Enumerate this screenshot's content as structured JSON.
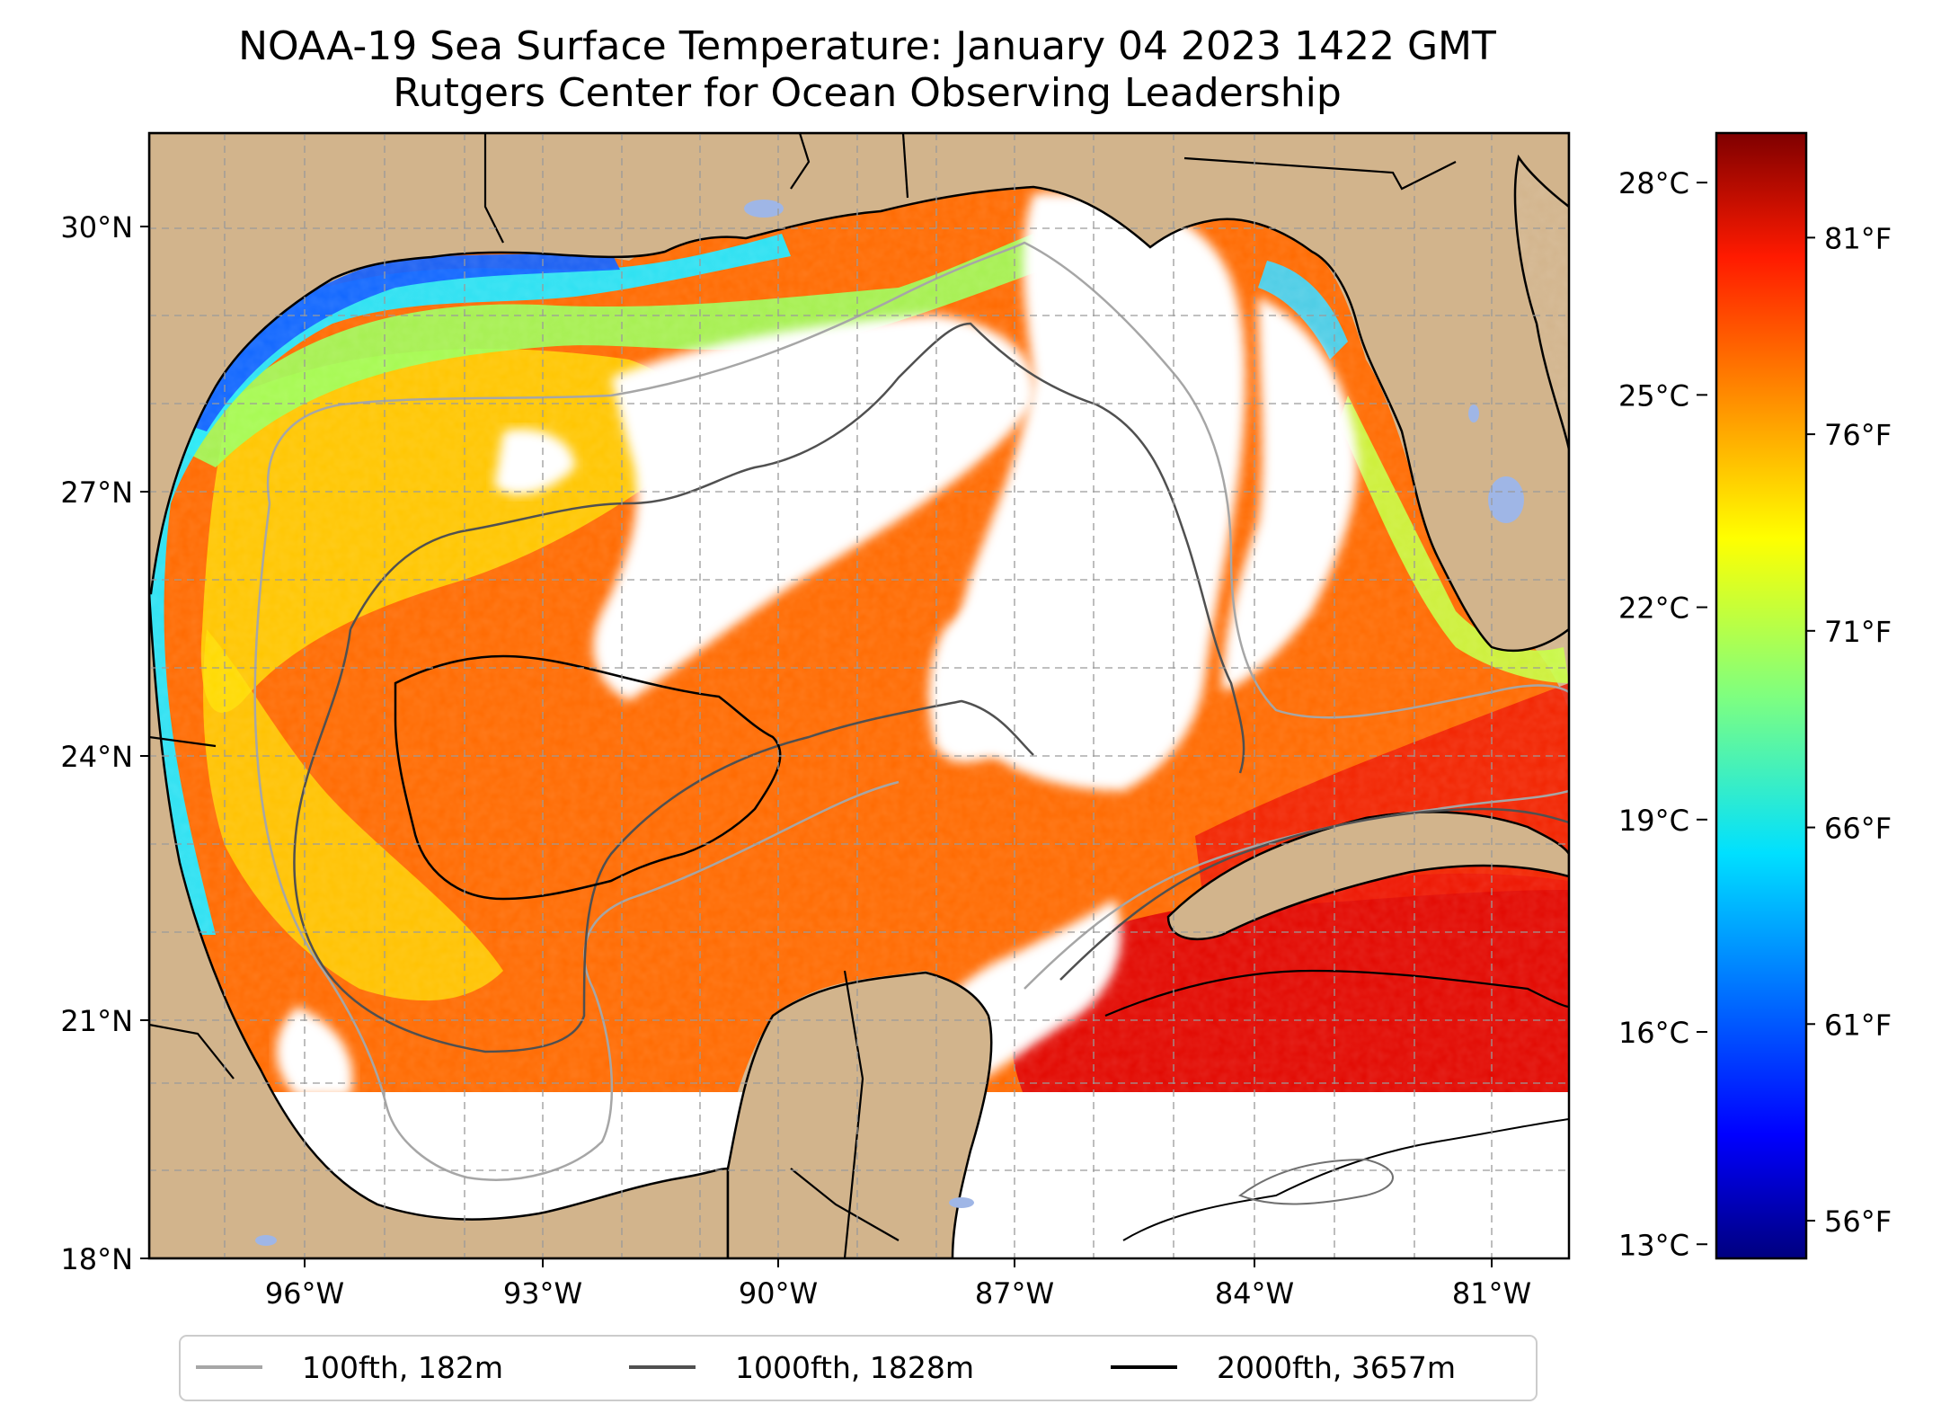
{
  "title": {
    "line1": "NOAA-19 Sea Surface Temperature: January 04 2023 1422 GMT",
    "line2": "Rutgers Center for Ocean Observing Leadership"
  },
  "map": {
    "latitude_labels": [
      "30°N",
      "27°N",
      "24°N",
      "21°N",
      "18°N"
    ],
    "longitude_labels": [
      "96°W",
      "93°W",
      "90°W",
      "87°W",
      "84°W",
      "81°W"
    ],
    "extent": {
      "lon_min": -98.3,
      "lon_max": -80.3,
      "lat_min": 18.0,
      "lat_max": 31.0
    },
    "land_color": "#d2b48c",
    "inland_water_color": "#a5b8e8",
    "gridlines": true
  },
  "colorbar": {
    "celsius_labels": [
      "28°C",
      "25°C",
      "22°C",
      "19°C",
      "16°C",
      "13°C"
    ],
    "fahrenheit_labels": [
      "81°F",
      "76°F",
      "71°F",
      "66°F",
      "61°F",
      "56°F"
    ],
    "celsius_values": [
      28,
      25,
      22,
      19,
      16,
      13
    ],
    "fahrenheit_values": [
      81,
      76,
      71,
      66,
      61,
      56
    ],
    "range_celsius": [
      12.8,
      28.7
    ],
    "colormap": "jet"
  },
  "legend": {
    "items": [
      {
        "label": "100fth, 182m",
        "color": "#a6a6a6"
      },
      {
        "label": "1000fth, 1828m",
        "color": "#505050"
      },
      {
        "label": "2000fth, 3657m",
        "color": "#000000"
      }
    ]
  }
}
